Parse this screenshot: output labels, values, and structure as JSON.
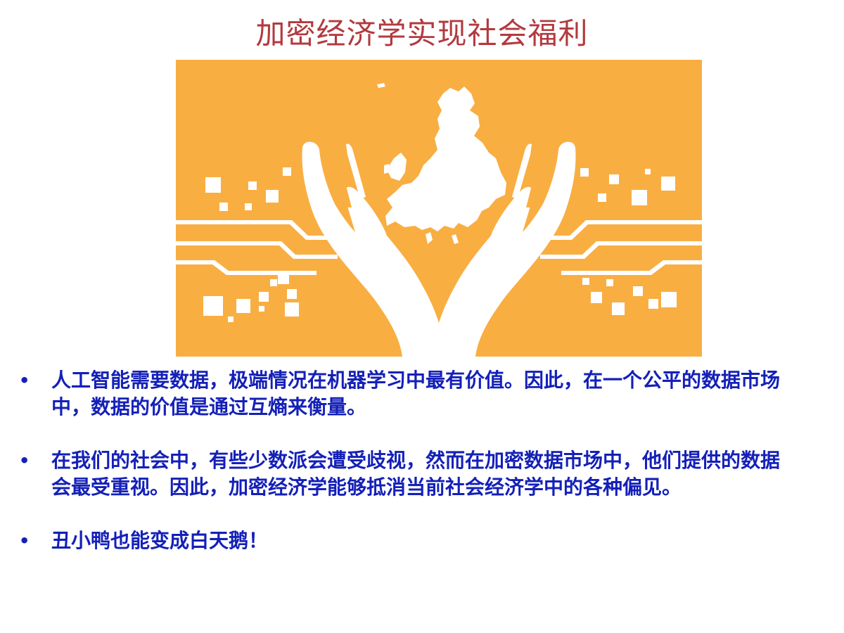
{
  "slide": {
    "title": "加密经济学实现社会福利",
    "bullet_glyph": "•",
    "bullets": [
      {
        "text": "人工智能需要数据，极端情况在机器学习中最有价值。因此，在一个公平的数据市场中，数据的价值是通过互熵来衡量。"
      },
      {
        "text": "在我们的社会中，有些少数派会遭受歧视，然而在加密数据市场中，他们提供的数据会最受重视。因此，加密经济学能够抵消当前社会经济学中的各种偏见。"
      },
      {
        "text": "丑小鸭也能变成白天鹅！"
      }
    ]
  },
  "illustration": {
    "description_icon": "hands-holding-europe-map-icon",
    "background_color": "#f9ae42",
    "foreground_color": "#ffffff"
  },
  "colors": {
    "title": "#b23a3f",
    "bullet_text": "#1420b8"
  }
}
